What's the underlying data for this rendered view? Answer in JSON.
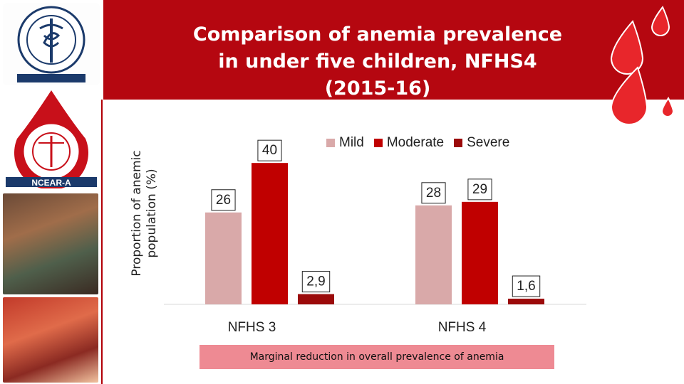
{
  "title": "Comparison of anemia prevalence in under five children, NFHS4 (2015-16)",
  "note": "Marginal reduction in overall prevalence of anemia",
  "logos": {
    "top_emblem_text": "अखिल भारतीय आयुर्विज्ञान संस्थान ALL INDIA INSTITUTE OF MEDICAL SCIENCES शरीरमाद्यं खलु धर्मसाधनम्",
    "center_emblem_text": "CENTRE FOR COMMUNITY MEDICINE A.I.I.M.S.",
    "ncear": "NCEAR-A"
  },
  "colors": {
    "title_band": "#b50710",
    "mild": "#d9a9a9",
    "moderate": "#c00000",
    "severe": "#9b0a0a"
  },
  "chart_data": {
    "type": "bar",
    "categories": [
      "NFHS 3",
      "NFHS 4"
    ],
    "series": [
      {
        "name": "Mild",
        "values": [
          26,
          28
        ],
        "labels": [
          "26",
          "28"
        ]
      },
      {
        "name": "Moderate",
        "values": [
          40,
          29
        ],
        "labels": [
          "40",
          "29"
        ]
      },
      {
        "name": "Severe",
        "values": [
          2.9,
          1.6
        ],
        "labels": [
          "2,9",
          "1,6"
        ]
      }
    ],
    "ylabel": "Proportion of anemic population (%)",
    "ylim": [
      0,
      45
    ],
    "grid": false,
    "legend_position": "top-right"
  }
}
